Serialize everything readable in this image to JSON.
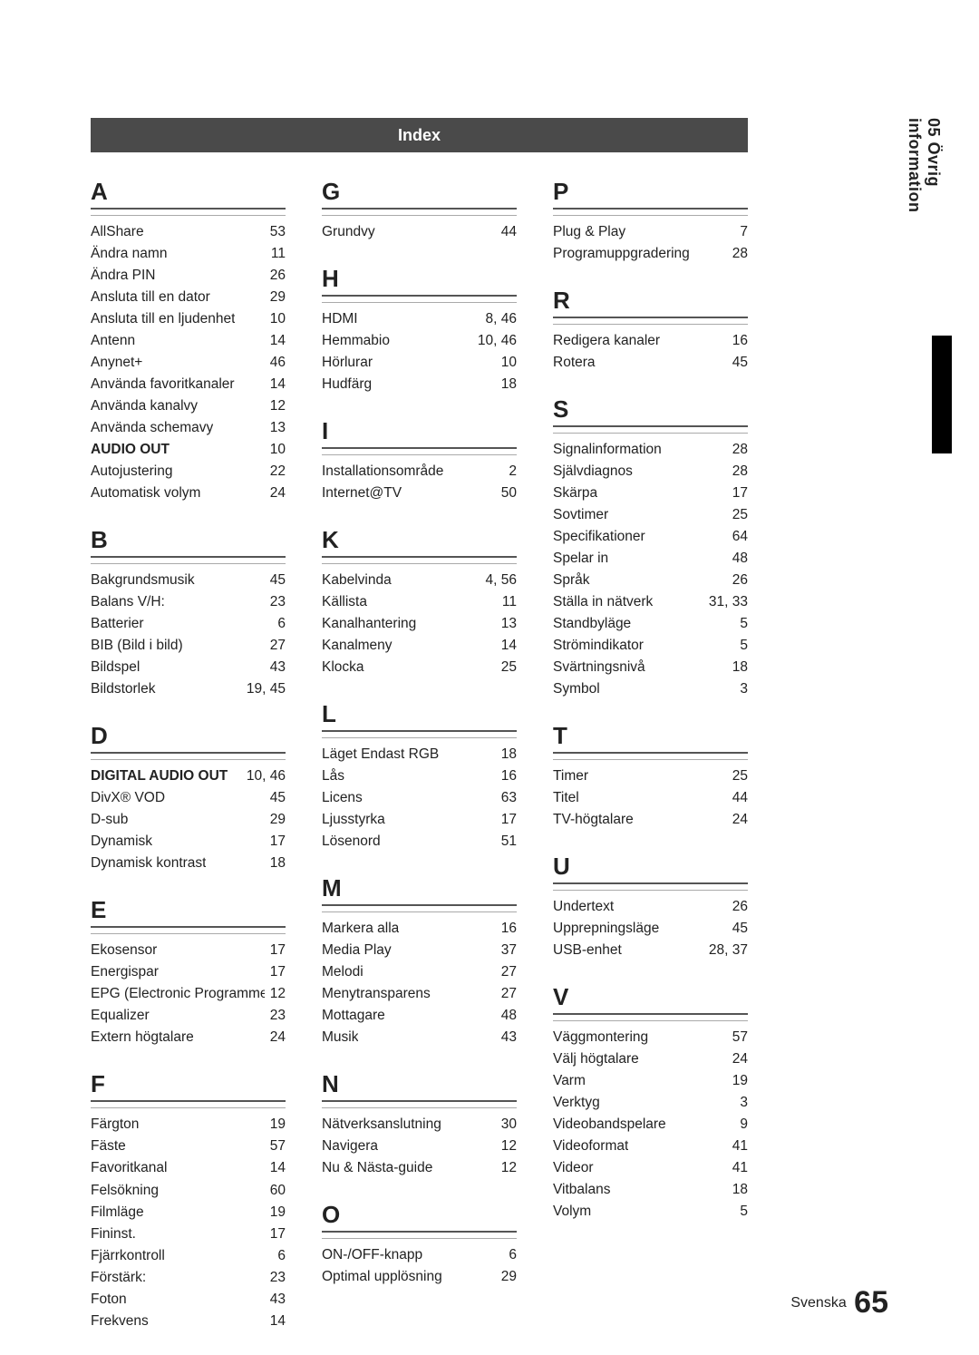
{
  "header": {
    "title": "Index"
  },
  "sidebar": {
    "label": "05  Övrig information"
  },
  "footer": {
    "lang": "Svenska",
    "page": "65"
  },
  "columns": [
    [
      {
        "letter": "A",
        "entries": [
          {
            "t": "AllShare",
            "p": "53"
          },
          {
            "t": "Ändra namn",
            "p": "11"
          },
          {
            "t": "Ändra PIN",
            "p": "26"
          },
          {
            "t": "Ansluta till en dator",
            "p": "29"
          },
          {
            "t": "Ansluta till en ljudenhet",
            "p": "10"
          },
          {
            "t": "Antenn",
            "p": "14"
          },
          {
            "t": "Anynet+",
            "p": "46"
          },
          {
            "t": "Använda favoritkanaler",
            "p": "14"
          },
          {
            "t": "Använda kanalvy",
            "p": "12"
          },
          {
            "t": "Använda schemavy",
            "p": "13"
          },
          {
            "t": "AUDIO OUT",
            "p": "10",
            "b": true
          },
          {
            "t": "Autojustering",
            "p": "22"
          },
          {
            "t": "Automatisk volym",
            "p": "24"
          }
        ]
      },
      {
        "letter": "B",
        "entries": [
          {
            "t": "Bakgrundsmusik",
            "p": "45"
          },
          {
            "t": "Balans V/H:",
            "p": "23"
          },
          {
            "t": "Batterier",
            "p": "6"
          },
          {
            "t": "BIB (Bild i bild)",
            "p": "27"
          },
          {
            "t": "Bildspel",
            "p": "43"
          },
          {
            "t": "Bildstorlek",
            "p": "19, 45"
          }
        ]
      },
      {
        "letter": "D",
        "entries": [
          {
            "t": "DIGITAL AUDIO OUT",
            "p": "10, 46",
            "b": true
          },
          {
            "t": "DivX® VOD",
            "p": "45"
          },
          {
            "t": "D-sub",
            "p": "29"
          },
          {
            "t": "Dynamisk",
            "p": "17"
          },
          {
            "t": "Dynamisk kontrast",
            "p": "18"
          }
        ]
      },
      {
        "letter": "E",
        "entries": [
          {
            "t": "Ekosensor",
            "p": "17"
          },
          {
            "t": "Energispar",
            "p": "17"
          },
          {
            "t": "EPG (Electronic Programme Guide)",
            "p": "12"
          },
          {
            "t": "Equalizer",
            "p": "23"
          },
          {
            "t": "Extern högtalare",
            "p": "24"
          }
        ]
      },
      {
        "letter": "F",
        "entries": [
          {
            "t": "Färgton",
            "p": "19"
          },
          {
            "t": "Fäste",
            "p": "57"
          },
          {
            "t": "Favoritkanal",
            "p": "14"
          },
          {
            "t": "Felsökning",
            "p": "60"
          },
          {
            "t": "Filmläge",
            "p": "19"
          },
          {
            "t": "Fininst.",
            "p": "17"
          },
          {
            "t": "Fjärrkontroll",
            "p": "6"
          },
          {
            "t": "Förstärk:",
            "p": "23"
          },
          {
            "t": "Foton",
            "p": "43"
          },
          {
            "t": "Frekvens",
            "p": "14"
          }
        ]
      }
    ],
    [
      {
        "letter": "G",
        "entries": [
          {
            "t": "Grundvy",
            "p": "44"
          }
        ]
      },
      {
        "letter": "H",
        "entries": [
          {
            "t": "HDMI",
            "p": "8, 46"
          },
          {
            "t": "Hemmabio",
            "p": "10, 46"
          },
          {
            "t": "Hörlurar",
            "p": "10"
          },
          {
            "t": "Hudfärg",
            "p": "18"
          }
        ]
      },
      {
        "letter": "I",
        "entries": [
          {
            "t": "Installationsområde",
            "p": "2"
          },
          {
            "t": "Internet@TV",
            "p": "50"
          }
        ]
      },
      {
        "letter": "K",
        "entries": [
          {
            "t": "Kabelvinda",
            "p": "4, 56"
          },
          {
            "t": "Källista",
            "p": "11"
          },
          {
            "t": "Kanalhantering",
            "p": "13"
          },
          {
            "t": "Kanalmeny",
            "p": "14"
          },
          {
            "t": "Klocka",
            "p": "25"
          }
        ]
      },
      {
        "letter": "L",
        "entries": [
          {
            "t": "Läget Endast RGB",
            "p": "18"
          },
          {
            "t": "Lås",
            "p": "16"
          },
          {
            "t": "Licens",
            "p": "63"
          },
          {
            "t": "Ljusstyrka",
            "p": "17"
          },
          {
            "t": "Lösenord",
            "p": "51"
          }
        ]
      },
      {
        "letter": "M",
        "entries": [
          {
            "t": "Markera alla",
            "p": "16"
          },
          {
            "t": "Media Play",
            "p": "37"
          },
          {
            "t": "Melodi",
            "p": "27"
          },
          {
            "t": "Menytransparens",
            "p": "27"
          },
          {
            "t": "Mottagare",
            "p": "48"
          },
          {
            "t": "Musik",
            "p": "43"
          }
        ]
      },
      {
        "letter": "N",
        "entries": [
          {
            "t": "Nätverksanslutning",
            "p": "30"
          },
          {
            "t": "Navigera",
            "p": "12"
          },
          {
            "t": "Nu & Nästa-guide",
            "p": "12"
          }
        ]
      },
      {
        "letter": "O",
        "entries": [
          {
            "t": "ON-/OFF-knapp",
            "p": "6"
          },
          {
            "t": "Optimal upplösning",
            "p": "29"
          }
        ]
      }
    ],
    [
      {
        "letter": "P",
        "entries": [
          {
            "t": "Plug & Play",
            "p": "7"
          },
          {
            "t": "Programuppgradering",
            "p": "28"
          }
        ]
      },
      {
        "letter": "R",
        "entries": [
          {
            "t": "Redigera kanaler",
            "p": "16"
          },
          {
            "t": "Rotera",
            "p": "45"
          }
        ]
      },
      {
        "letter": "S",
        "entries": [
          {
            "t": "Signalinformation",
            "p": "28"
          },
          {
            "t": "Självdiagnos",
            "p": "28"
          },
          {
            "t": "Skärpa",
            "p": "17"
          },
          {
            "t": "Sovtimer",
            "p": "25"
          },
          {
            "t": "Specifikationer",
            "p": "64"
          },
          {
            "t": "Spelar in",
            "p": "48"
          },
          {
            "t": "Språk",
            "p": "26"
          },
          {
            "t": "Ställa in nätverk",
            "p": "31, 33"
          },
          {
            "t": "Standbyläge",
            "p": "5"
          },
          {
            "t": "Strömindikator",
            "p": "5"
          },
          {
            "t": "Svärtningsnivå",
            "p": "18"
          },
          {
            "t": "Symbol",
            "p": "3"
          }
        ]
      },
      {
        "letter": "T",
        "entries": [
          {
            "t": "Timer",
            "p": "25"
          },
          {
            "t": "Titel",
            "p": "44"
          },
          {
            "t": "TV-högtalare",
            "p": "24"
          }
        ]
      },
      {
        "letter": "U",
        "entries": [
          {
            "t": "Undertext",
            "p": "26"
          },
          {
            "t": "Upprepningsläge",
            "p": "45"
          },
          {
            "t": "USB-enhet",
            "p": "28, 37"
          }
        ]
      },
      {
        "letter": "V",
        "entries": [
          {
            "t": "Väggmontering",
            "p": "57"
          },
          {
            "t": "Välj högtalare",
            "p": "24"
          },
          {
            "t": "Varm",
            "p": "19"
          },
          {
            "t": "Verktyg",
            "p": "3"
          },
          {
            "t": "Videobandspelare",
            "p": "9"
          },
          {
            "t": "Videoformat",
            "p": "41"
          },
          {
            "t": "Videor",
            "p": "41"
          },
          {
            "t": "Vitbalans",
            "p": "18"
          },
          {
            "t": "Volym",
            "p": "5"
          }
        ]
      }
    ]
  ]
}
